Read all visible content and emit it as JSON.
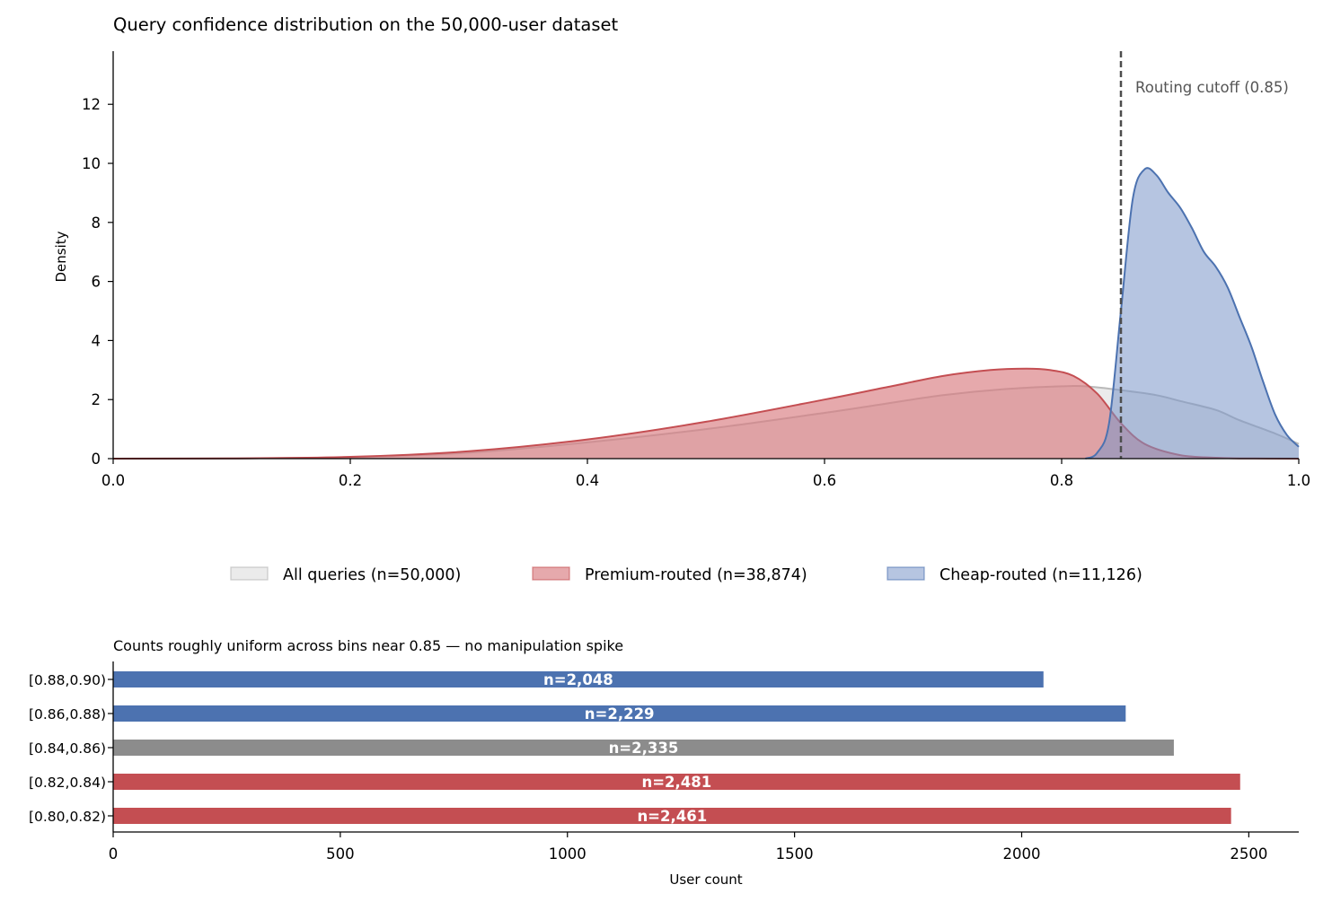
{
  "chart_data": [
    {
      "type": "area",
      "title": "Query confidence distribution on the 50,000-user dataset",
      "xlabel": "",
      "ylabel": "Density",
      "xlim": [
        0.0,
        1.0
      ],
      "ylim": [
        0,
        13.8
      ],
      "x_ticks": [
        "0.0",
        "0.2",
        "0.4",
        "0.6",
        "0.8",
        "1.0"
      ],
      "y_ticks": [
        "0",
        "2",
        "4",
        "6",
        "8",
        "10",
        "12"
      ],
      "grid": false,
      "legend_position": "bottom-center",
      "cutoff": {
        "value": 0.85,
        "label": "Routing cutoff (0.85)",
        "color": "#4d4d4d"
      },
      "series": [
        {
          "name": "All queries (n=50,000)",
          "fill": "#e6e6e6",
          "stroke": "#b3b3b3",
          "x": [
            0.0,
            0.1,
            0.2,
            0.3,
            0.4,
            0.5,
            0.6,
            0.65,
            0.7,
            0.75,
            0.8,
            0.82,
            0.85,
            0.88,
            0.9,
            0.93,
            0.95,
            0.98,
            1.0
          ],
          "y": [
            0.0,
            0.01,
            0.05,
            0.2,
            0.55,
            1.0,
            1.55,
            1.85,
            2.15,
            2.35,
            2.45,
            2.45,
            2.32,
            2.15,
            1.95,
            1.65,
            1.3,
            0.85,
            0.5
          ]
        },
        {
          "name": "Premium-routed (n=38,874)",
          "fill": "#d97b80",
          "stroke": "#c44e52",
          "x": [
            0.0,
            0.1,
            0.2,
            0.3,
            0.4,
            0.5,
            0.6,
            0.65,
            0.7,
            0.74,
            0.77,
            0.79,
            0.81,
            0.83,
            0.85,
            0.87,
            0.9,
            0.93,
            0.95,
            1.0
          ],
          "y": [
            0.0,
            0.01,
            0.06,
            0.25,
            0.65,
            1.25,
            2.0,
            2.4,
            2.8,
            3.0,
            3.05,
            3.0,
            2.8,
            2.2,
            1.2,
            0.5,
            0.12,
            0.03,
            0.01,
            0.0
          ]
        },
        {
          "name": "Cheap-routed (n=11,126)",
          "fill": "#7a96c9",
          "stroke": "#4c72b0",
          "x": [
            0.82,
            0.83,
            0.84,
            0.85,
            0.86,
            0.87,
            0.88,
            0.89,
            0.9,
            0.91,
            0.92,
            0.93,
            0.94,
            0.95,
            0.96,
            0.97,
            0.98,
            0.99,
            1.0
          ],
          "y": [
            0.0,
            0.2,
            1.2,
            5.0,
            8.8,
            9.8,
            9.6,
            9.0,
            8.5,
            7.8,
            7.0,
            6.5,
            5.8,
            4.8,
            3.8,
            2.6,
            1.5,
            0.8,
            0.4
          ]
        }
      ]
    },
    {
      "type": "bar",
      "orientation": "horizontal",
      "title": "Counts roughly uniform across bins near 0.85 — no manipulation spike",
      "xlabel": "User count",
      "ylabel": "",
      "xlim": [
        0,
        2610
      ],
      "x_ticks": [
        "0",
        "500",
        "1000",
        "1500",
        "2000",
        "2500"
      ],
      "grid": false,
      "categories": [
        "[0.88,0.90)",
        "[0.86,0.88)",
        "[0.84,0.86)",
        "[0.82,0.84)",
        "[0.80,0.82)"
      ],
      "values": [
        2048,
        2229,
        2335,
        2481,
        2461
      ],
      "data_labels": [
        "n=2,048",
        "n=2,229",
        "n=2,335",
        "n=2,481",
        "n=2,461"
      ],
      "colors": [
        "#4c72b0",
        "#4c72b0",
        "#8c8c8c",
        "#c44e52",
        "#c44e52"
      ]
    }
  ]
}
